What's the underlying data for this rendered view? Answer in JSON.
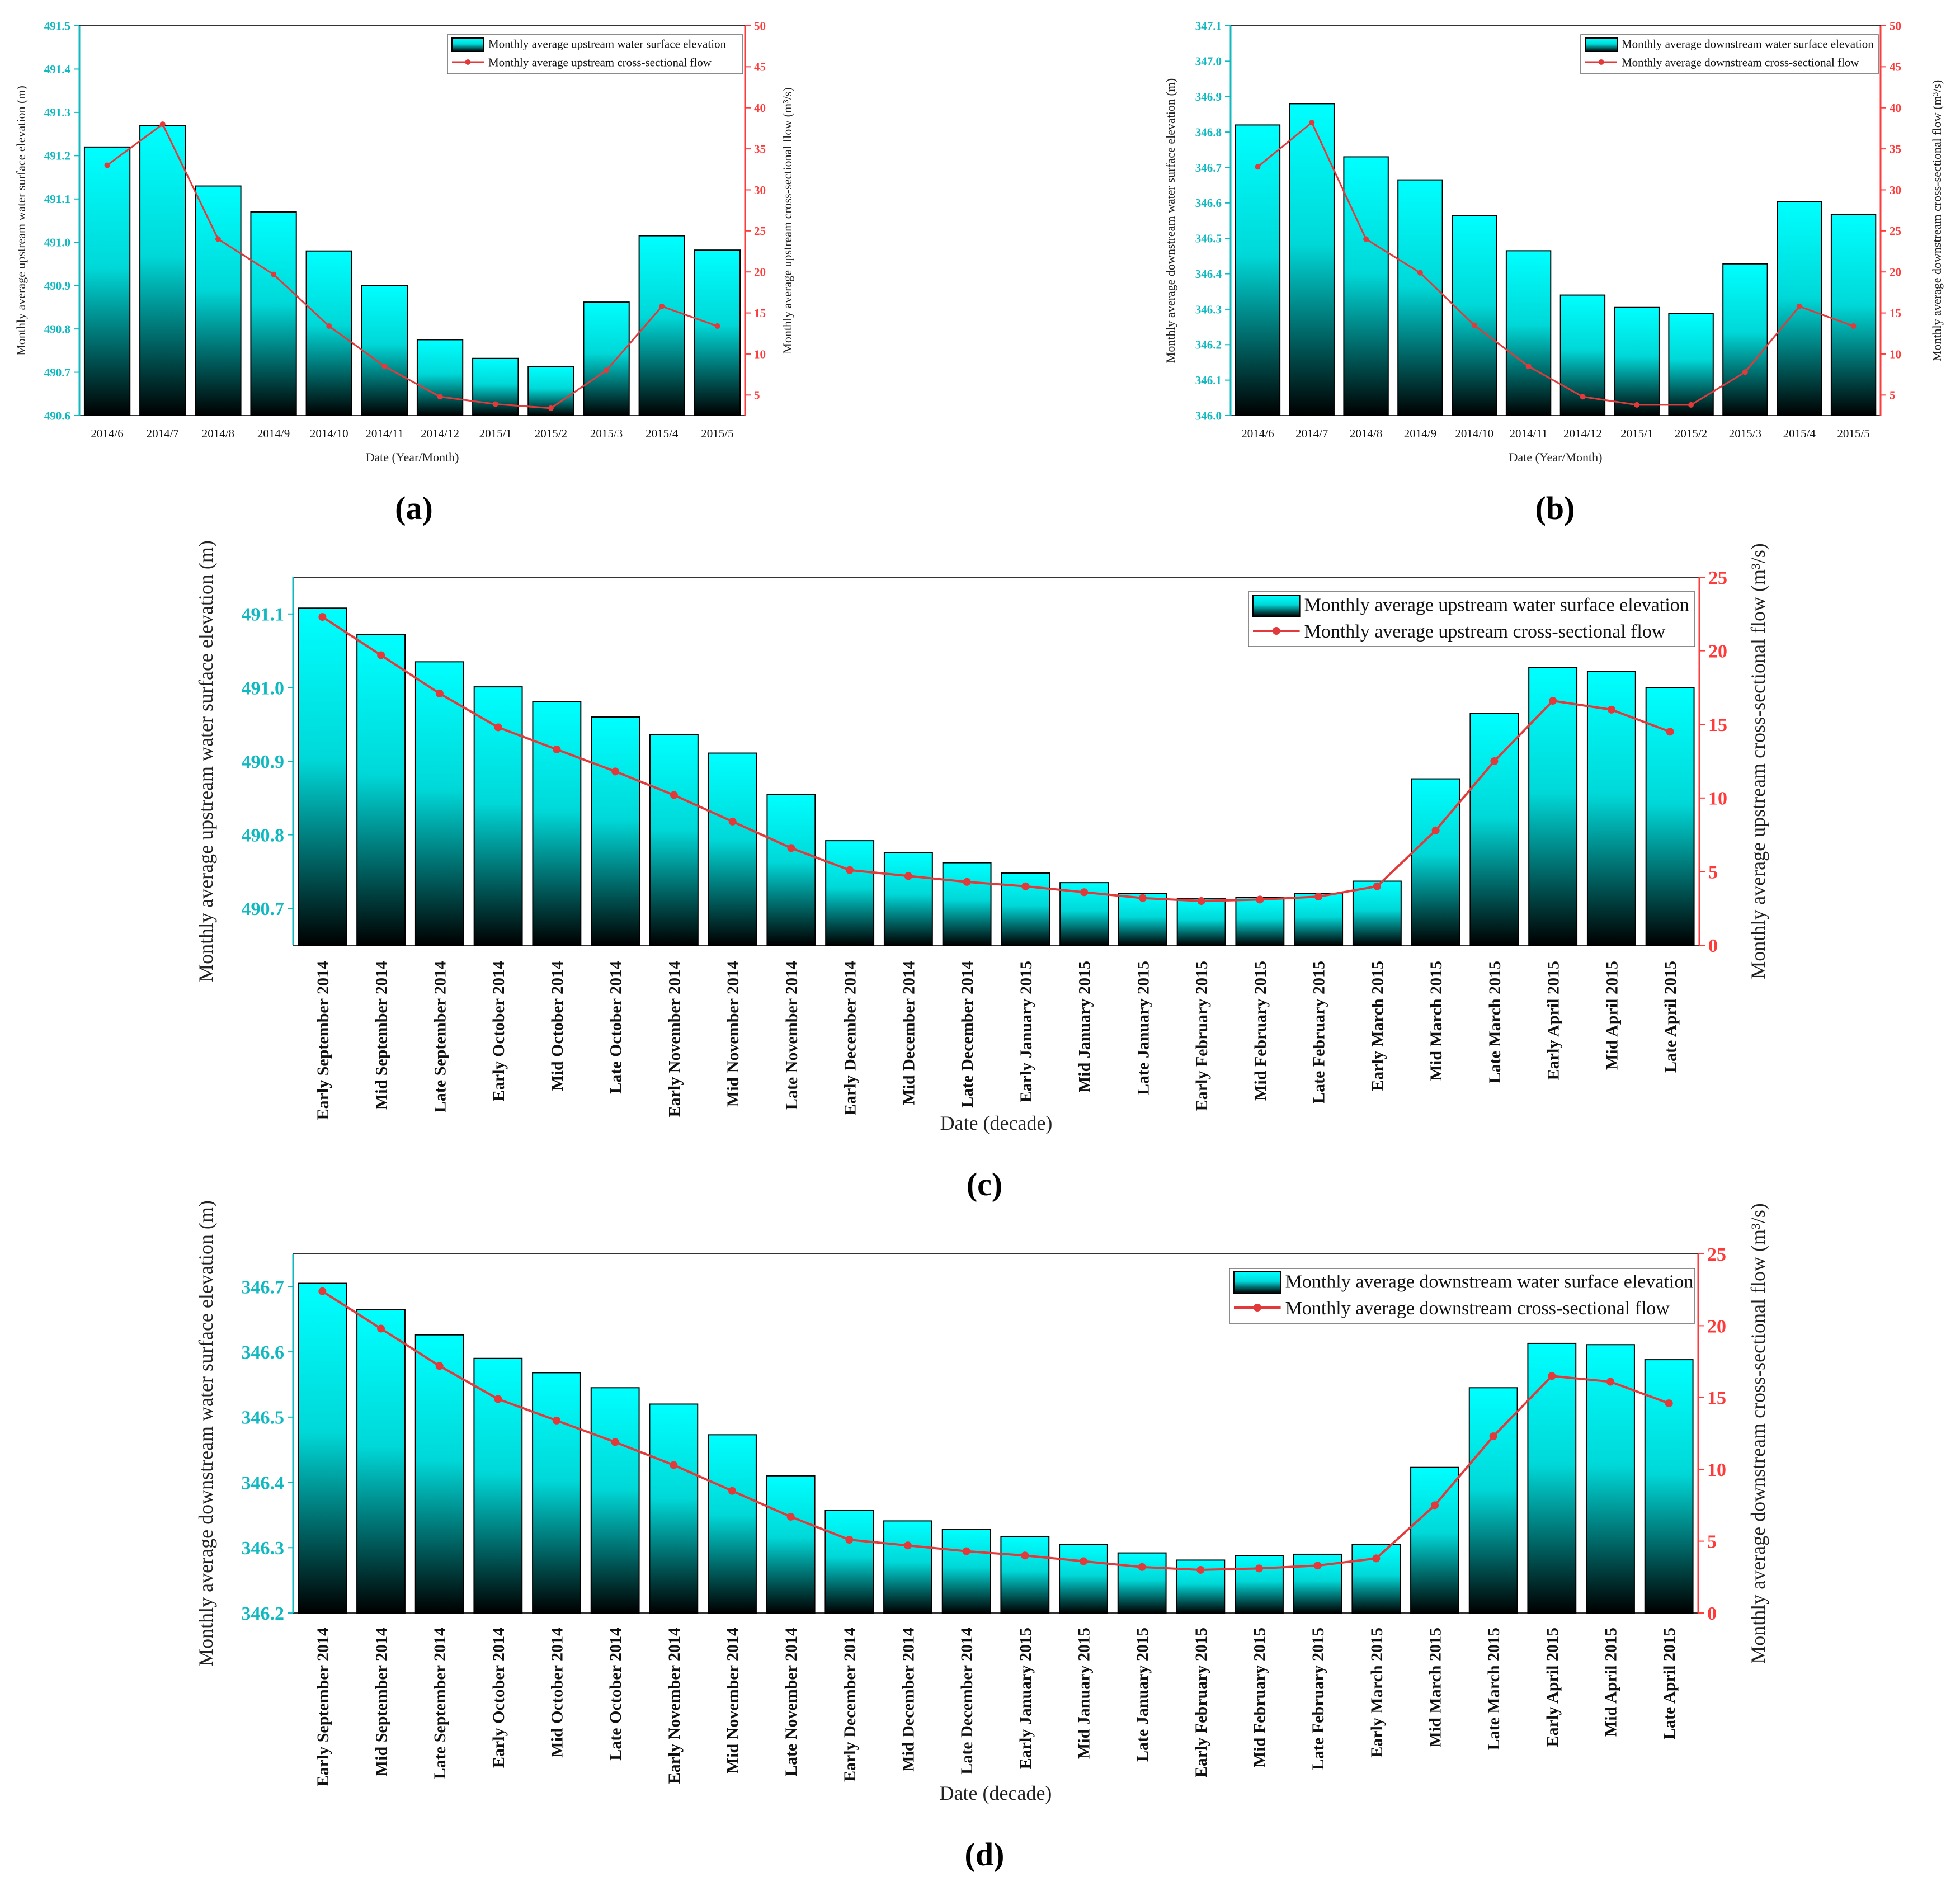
{
  "colors": {
    "bar_top": "#00ffff",
    "bar_bottom": "#000000",
    "left_axis": "#10b9c0",
    "right_axis": "#ff3a3a",
    "line": "#e23a3a"
  },
  "chart_data": [
    {
      "id": "a",
      "panel_label": "(a)",
      "type": "bar",
      "categories": [
        "2014/6",
        "2014/7",
        "2014/8",
        "2014/9",
        "2014/10",
        "2014/11",
        "2014/12",
        "2015/1",
        "2015/2",
        "2015/3",
        "2015/4",
        "2015/5"
      ],
      "series": [
        {
          "name": "Monthly average upstream water surface elevation",
          "kind": "bar",
          "axis": "left",
          "values": [
            491.22,
            491.27,
            491.13,
            491.07,
            490.98,
            490.9,
            490.775,
            490.732,
            490.713,
            490.862,
            491.015,
            490.982
          ]
        },
        {
          "name": "Monthly average upstream cross-sectional flow",
          "kind": "line",
          "axis": "right",
          "values": [
            33.0,
            38.0,
            24.0,
            19.7,
            13.4,
            8.5,
            4.8,
            3.9,
            3.4,
            8.0,
            15.8,
            13.4
          ]
        }
      ],
      "xlabel": "Date (Year/Month)",
      "ylabel": "Monthly average upstream water surface elevation (m)",
      "y2label": "Monthly average upstream cross-sectional flow (m³/s)",
      "ylim": [
        490.6,
        491.5
      ],
      "yticks": [
        "490.6",
        "490.7",
        "490.8",
        "490.9",
        "491.0",
        "491.1",
        "491.2",
        "491.3",
        "491.4",
        "491.5"
      ],
      "y2lim": [
        2.5,
        50
      ],
      "y2ticks": [
        "5",
        "10",
        "15",
        "20",
        "25",
        "30",
        "35",
        "40",
        "45",
        "50"
      ],
      "legend_position": "top-right"
    },
    {
      "id": "b",
      "panel_label": "(b)",
      "type": "bar",
      "categories": [
        "2014/6",
        "2014/7",
        "2014/8",
        "2014/9",
        "2014/10",
        "2014/11",
        "2014/12",
        "2015/1",
        "2015/2",
        "2015/3",
        "2015/4",
        "2015/5"
      ],
      "series": [
        {
          "name": "Monthly average downstream water surface elevation",
          "kind": "bar",
          "axis": "left",
          "values": [
            346.82,
            346.88,
            346.73,
            346.665,
            346.565,
            346.465,
            346.34,
            346.305,
            346.288,
            346.428,
            346.604,
            346.567
          ]
        },
        {
          "name": "Monthly average downstream cross-sectional flow",
          "kind": "line",
          "axis": "right",
          "values": [
            32.8,
            38.2,
            24.0,
            19.9,
            13.5,
            8.5,
            4.8,
            3.8,
            3.8,
            7.8,
            15.8,
            13.4
          ]
        }
      ],
      "xlabel": "Date (Year/Month)",
      "ylabel": "Monthly average downstream water surface elevation (m)",
      "y2label": "Monthly average downstream cross-sectional flow (m³/s)",
      "ylim": [
        346.0,
        347.1
      ],
      "yticks": [
        "346.0",
        "346.1",
        "346.2",
        "346.3",
        "346.4",
        "346.5",
        "346.6",
        "346.7",
        "346.8",
        "346.9",
        "347.0",
        "347.1"
      ],
      "y2lim": [
        2.5,
        50
      ],
      "y2ticks": [
        "5",
        "10",
        "15",
        "20",
        "25",
        "30",
        "35",
        "40",
        "45",
        "50"
      ],
      "legend_position": "top-right"
    },
    {
      "id": "c",
      "panel_label": "(c)",
      "type": "bar",
      "categories": [
        "Early September 2014",
        "Mid September 2014",
        "Late September 2014",
        "Early October 2014",
        "Mid October 2014",
        "Late October 2014",
        "Early November 2014",
        "Mid November 2014",
        "Late November 2014",
        "Early December 2014",
        "Mid December 2014",
        "Late December 2014",
        "Early January 2015",
        "Mid January 2015",
        "Late January 2015",
        "Early February 2015",
        "Mid February 2015",
        "Late February 2015",
        "Early March 2015",
        "Mid March 2015",
        "Late March 2015",
        "Early April 2015",
        "Mid April 2015",
        "Late April 2015"
      ],
      "series": [
        {
          "name": "Monthly average upstream water surface elevation",
          "kind": "bar",
          "axis": "left",
          "values": [
            491.108,
            491.072,
            491.035,
            491.001,
            490.981,
            490.96,
            490.936,
            490.911,
            490.855,
            490.792,
            490.776,
            490.762,
            490.748,
            490.735,
            490.72,
            490.713,
            490.715,
            490.72,
            490.737,
            490.876,
            490.965,
            491.027,
            491.022,
            491.0
          ]
        },
        {
          "name": "Monthly average upstream cross-sectional flow",
          "kind": "line",
          "axis": "right",
          "values": [
            22.3,
            19.7,
            17.1,
            14.8,
            13.3,
            11.8,
            10.2,
            8.4,
            6.6,
            5.1,
            4.7,
            4.3,
            4.0,
            3.6,
            3.2,
            3.0,
            3.1,
            3.3,
            4.0,
            7.8,
            12.5,
            16.6,
            16.0,
            14.5
          ]
        }
      ],
      "xlabel": "Date (decade)",
      "ylabel": "Monthly average upstream water surface elevation (m)",
      "y2label": "Monthly average upstream cross-sectional flow (m³/s)",
      "ylim": [
        490.65,
        491.15
      ],
      "yticks": [
        "490.7",
        "490.8",
        "490.9",
        "491.0",
        "491.1"
      ],
      "y2lim": [
        0,
        25
      ],
      "y2ticks": [
        "0",
        "5",
        "10",
        "15",
        "20",
        "25"
      ],
      "legend_position": "top-right"
    },
    {
      "id": "d",
      "panel_label": "(d)",
      "type": "bar",
      "categories": [
        "Early September 2014",
        "Mid September 2014",
        "Late September 2014",
        "Early October 2014",
        "Mid October 2014",
        "Late October 2014",
        "Early November 2014",
        "Mid November 2014",
        "Late November 2014",
        "Early December 2014",
        "Mid December 2014",
        "Late December 2014",
        "Early January 2015",
        "Mid January 2015",
        "Late January 2015",
        "Early February 2015",
        "Mid February 2015",
        "Late February 2015",
        "Early March 2015",
        "Mid March 2015",
        "Late March 2015",
        "Early April 2015",
        "Mid April 2015",
        "Late April 2015"
      ],
      "series": [
        {
          "name": "Monthly average downstream water surface elevation",
          "kind": "bar",
          "axis": "left",
          "values": [
            346.705,
            346.665,
            346.626,
            346.59,
            346.568,
            346.545,
            346.52,
            346.473,
            346.41,
            346.357,
            346.341,
            346.328,
            346.317,
            346.305,
            346.292,
            346.281,
            346.288,
            346.29,
            346.305,
            346.423,
            346.545,
            346.613,
            346.611,
            346.588
          ]
        },
        {
          "name": "Monthly average downstream cross-sectional flow",
          "kind": "line",
          "axis": "right",
          "values": [
            22.4,
            19.8,
            17.2,
            14.9,
            13.4,
            11.9,
            10.3,
            8.5,
            6.7,
            5.1,
            4.7,
            4.3,
            4.0,
            3.6,
            3.2,
            3.0,
            3.1,
            3.3,
            3.8,
            7.5,
            12.3,
            16.5,
            16.1,
            14.6
          ]
        }
      ],
      "xlabel": "Date (decade)",
      "ylabel": "Monthly average downstream water surface elevation (m)",
      "y2label": "Monthly average downstream cross-sectional flow (m³/s)",
      "ylim": [
        346.2,
        346.75
      ],
      "yticks": [
        "346.2",
        "346.3",
        "346.4",
        "346.5",
        "346.6",
        "346.7"
      ],
      "y2lim": [
        0,
        25
      ],
      "y2ticks": [
        "0",
        "5",
        "10",
        "15",
        "20",
        "25"
      ],
      "legend_position": "top-right"
    }
  ]
}
